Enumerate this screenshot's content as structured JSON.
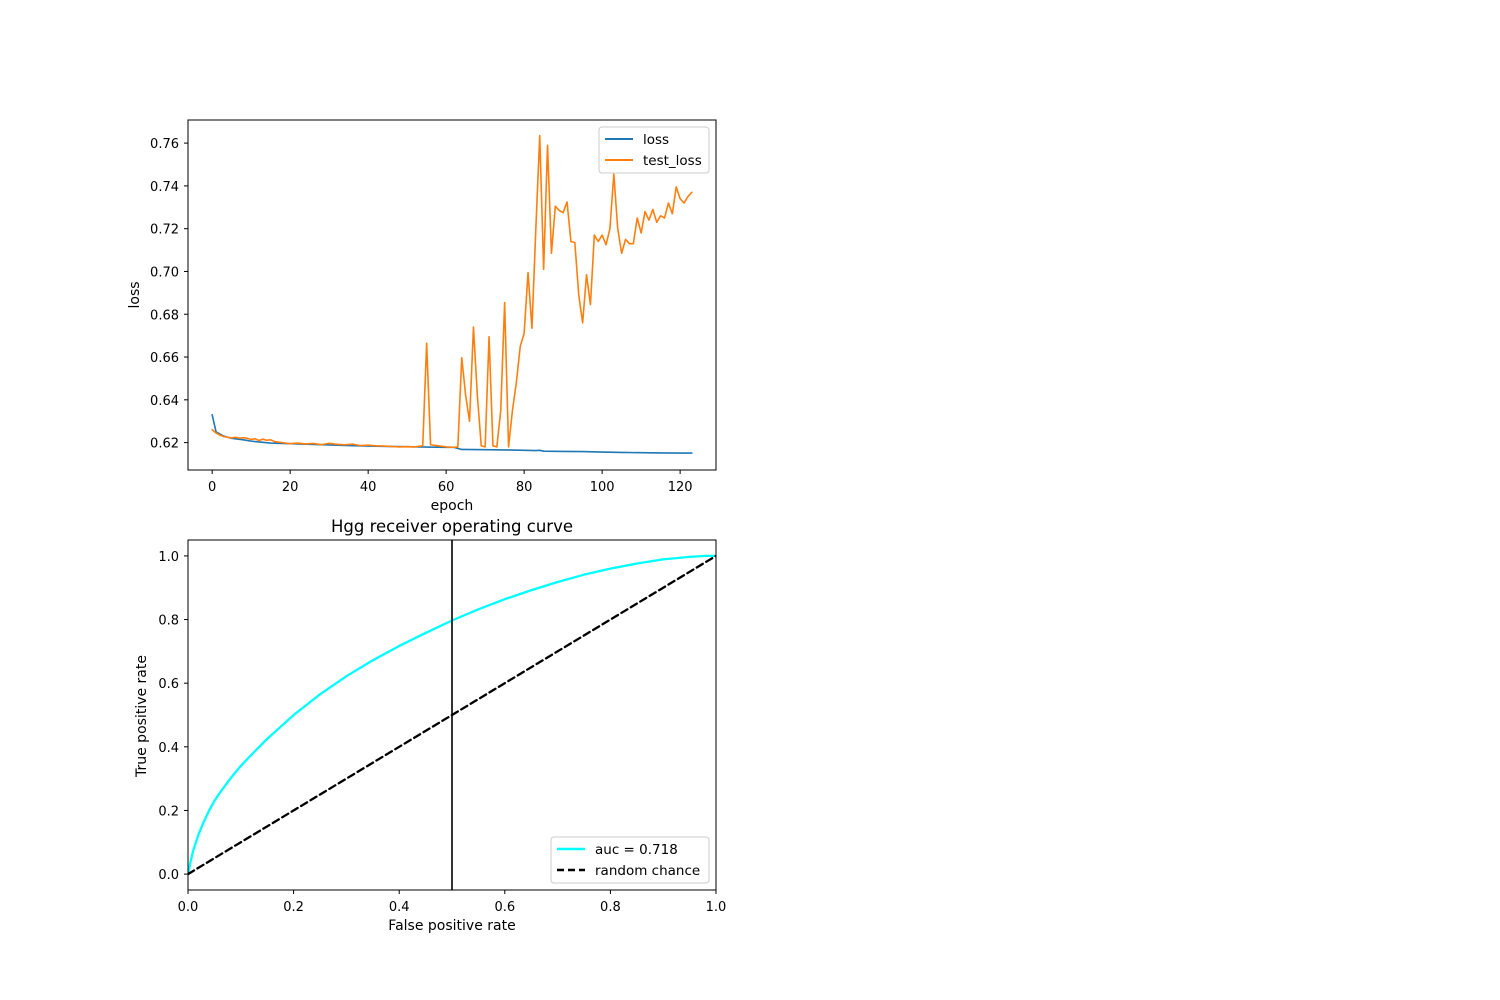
{
  "chart_data": [
    {
      "type": "line",
      "title": "",
      "xlabel": "epoch",
      "ylabel": "loss",
      "xlim": [
        -6.2,
        129.2
      ],
      "ylim": [
        0.6072,
        0.7708
      ],
      "xticks": [
        0,
        20,
        40,
        60,
        80,
        100,
        120
      ],
      "xtick_labels": [
        "0",
        "20",
        "40",
        "60",
        "80",
        "100",
        "120"
      ],
      "yticks": [
        0.62,
        0.64,
        0.66,
        0.68,
        0.7,
        0.72,
        0.74,
        0.76
      ],
      "ytick_labels": [
        "0.62",
        "0.64",
        "0.66",
        "0.68",
        "0.70",
        "0.72",
        "0.74",
        "0.76"
      ],
      "grid": false,
      "legend_position": "top-right",
      "series": [
        {
          "name": "loss",
          "color": "#1f77b4",
          "x": [
            0,
            1,
            2,
            3,
            4,
            5,
            6,
            8,
            10,
            12,
            15,
            20,
            25,
            30,
            35,
            40,
            45,
            50,
            55,
            60,
            62,
            64,
            70,
            75,
            80,
            83,
            84,
            85,
            90,
            95,
            100,
            105,
            110,
            115,
            120,
            123
          ],
          "y": [
            0.633,
            0.625,
            0.624,
            0.623,
            0.6225,
            0.622,
            0.6218,
            0.6213,
            0.6207,
            0.6203,
            0.6198,
            0.6195,
            0.6192,
            0.6189,
            0.6186,
            0.6184,
            0.6182,
            0.6181,
            0.6179,
            0.6178,
            0.6178,
            0.6168,
            0.6167,
            0.6166,
            0.6164,
            0.6163,
            0.6164,
            0.616,
            0.6159,
            0.6158,
            0.6156,
            0.6154,
            0.6153,
            0.6152,
            0.6151,
            0.6151
          ]
        },
        {
          "name": "test_loss",
          "color": "#ff7f0e",
          "x": [
            0,
            1,
            2,
            3,
            4,
            5,
            6,
            7,
            8,
            9,
            10,
            11,
            12,
            13,
            14,
            15,
            16,
            18,
            20,
            22,
            24,
            26,
            28,
            30,
            32,
            34,
            36,
            38,
            40,
            42,
            44,
            46,
            48,
            50,
            52,
            54,
            55,
            56,
            58,
            60,
            62,
            63,
            64,
            65,
            66,
            67,
            68,
            69,
            70,
            71,
            72,
            73,
            74,
            75,
            76,
            77,
            78,
            79,
            80,
            81,
            82,
            83,
            84,
            85,
            86,
            87,
            88,
            89,
            90,
            91,
            92,
            93,
            94,
            95,
            96,
            97,
            98,
            99,
            100,
            101,
            102,
            103,
            104,
            105,
            106,
            107,
            108,
            109,
            110,
            111,
            112,
            113,
            114,
            115,
            116,
            117,
            118,
            119,
            120,
            121,
            122,
            123
          ],
          "y": [
            0.626,
            0.6245,
            0.6235,
            0.6228,
            0.6225,
            0.6222,
            0.6225,
            0.6221,
            0.6223,
            0.622,
            0.6215,
            0.6218,
            0.621,
            0.6216,
            0.6211,
            0.6213,
            0.6205,
            0.62,
            0.6195,
            0.6198,
            0.6194,
            0.6196,
            0.619,
            0.6197,
            0.6192,
            0.619,
            0.6193,
            0.6186,
            0.6188,
            0.6185,
            0.6184,
            0.6182,
            0.618,
            0.6181,
            0.618,
            0.6185,
            0.6665,
            0.619,
            0.6185,
            0.618,
            0.6178,
            0.618,
            0.6597,
            0.642,
            0.63,
            0.674,
            0.642,
            0.6185,
            0.618,
            0.6695,
            0.6185,
            0.618,
            0.635,
            0.6855,
            0.618,
            0.635,
            0.648,
            0.665,
            0.671,
            0.6995,
            0.6735,
            0.72,
            0.7635,
            0.701,
            0.759,
            0.7085,
            0.7305,
            0.7285,
            0.7275,
            0.7325,
            0.714,
            0.7135,
            0.689,
            0.676,
            0.6985,
            0.6845,
            0.717,
            0.714,
            0.717,
            0.7125,
            0.72,
            0.7455,
            0.72,
            0.7085,
            0.715,
            0.713,
            0.713,
            0.725,
            0.718,
            0.728,
            0.724,
            0.729,
            0.723,
            0.726,
            0.725,
            0.732,
            0.727,
            0.7395,
            0.734,
            0.732,
            0.735,
            0.737
          ]
        }
      ]
    },
    {
      "type": "line",
      "title": "Hgg receiver operating curve",
      "xlabel": "False positive rate",
      "ylabel": "True positive rate",
      "xlim": [
        0.0,
        1.0
      ],
      "ylim": [
        -0.05,
        1.05
      ],
      "xticks": [
        0.0,
        0.2,
        0.4,
        0.6,
        0.8,
        1.0
      ],
      "xtick_labels": [
        "0.0",
        "0.2",
        "0.4",
        "0.6",
        "0.8",
        "1.0"
      ],
      "yticks": [
        0.0,
        0.2,
        0.4,
        0.6,
        0.8,
        1.0
      ],
      "ytick_labels": [
        "0.0",
        "0.2",
        "0.4",
        "0.6",
        "0.8",
        "1.0"
      ],
      "grid": false,
      "legend_position": "bottom-right",
      "vertical_line_x": 0.5,
      "series": [
        {
          "name": "auc = 0.718",
          "color": "#00ffff",
          "x": [
            0.0,
            0.005,
            0.01,
            0.02,
            0.03,
            0.04,
            0.05,
            0.06,
            0.08,
            0.1,
            0.12,
            0.15,
            0.18,
            0.2,
            0.25,
            0.3,
            0.35,
            0.4,
            0.45,
            0.5,
            0.55,
            0.6,
            0.65,
            0.7,
            0.75,
            0.8,
            0.85,
            0.9,
            0.95,
            0.98,
            1.0
          ],
          "y": [
            0.0,
            0.04,
            0.075,
            0.125,
            0.165,
            0.2,
            0.23,
            0.255,
            0.3,
            0.34,
            0.375,
            0.425,
            0.47,
            0.5,
            0.565,
            0.622,
            0.672,
            0.717,
            0.758,
            0.797,
            0.832,
            0.864,
            0.892,
            0.918,
            0.941,
            0.96,
            0.976,
            0.989,
            0.997,
            1.0,
            1.0
          ]
        },
        {
          "name": "random chance",
          "color": "#000000",
          "dashed": true,
          "x": [
            0.0,
            1.0
          ],
          "y": [
            0.0,
            1.0
          ]
        }
      ]
    }
  ]
}
